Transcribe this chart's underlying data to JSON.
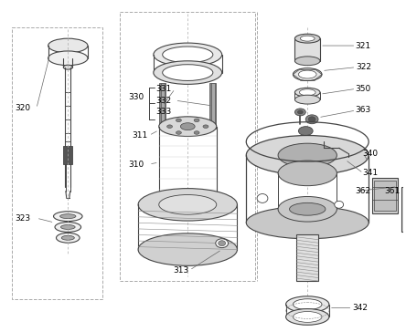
{
  "bg_color": "#ffffff",
  "line_color": "#444444",
  "label_color": "#000000",
  "fig_width": 4.44,
  "fig_height": 3.64,
  "dpi": 100
}
